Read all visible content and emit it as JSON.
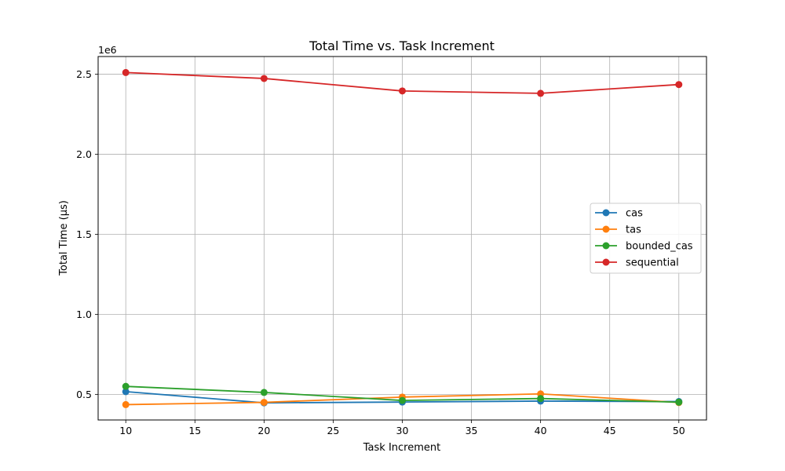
{
  "chart_data": {
    "type": "line",
    "title": "Total Time vs. Task Increment",
    "xlabel": "Task Increment",
    "ylabel": "Total Time (µs)",
    "y_offset_text": "1e6",
    "x": [
      10,
      20,
      30,
      40,
      50
    ],
    "xlim": [
      8,
      52
    ],
    "ylim": [
      340000,
      2610000
    ],
    "xticks": [
      10,
      15,
      20,
      25,
      30,
      35,
      40,
      45,
      50
    ],
    "yticks": [
      500000,
      1000000,
      1500000,
      2000000,
      2500000
    ],
    "ytick_labels": [
      "0.5",
      "1.0",
      "1.5",
      "2.0",
      "2.5"
    ],
    "grid": true,
    "legend_position": "center-right",
    "series": [
      {
        "name": "cas",
        "color": "#1f77b4",
        "values": [
          517000,
          447000,
          452000,
          458000,
          455000
        ]
      },
      {
        "name": "tas",
        "color": "#ff7f0e",
        "values": [
          436000,
          450000,
          483000,
          503000,
          449000
        ]
      },
      {
        "name": "bounded_cas",
        "color": "#2ca02c",
        "values": [
          550000,
          512000,
          462000,
          474000,
          451000
        ]
      },
      {
        "name": "sequential",
        "color": "#d62728",
        "values": [
          2510000,
          2473000,
          2395000,
          2380000,
          2435000
        ]
      }
    ]
  }
}
